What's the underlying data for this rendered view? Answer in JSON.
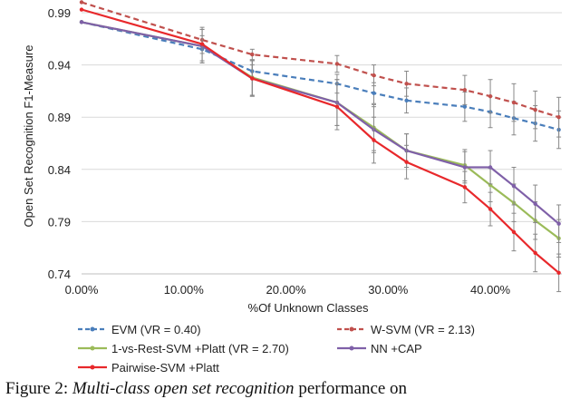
{
  "chart_data": {
    "type": "line",
    "title": "",
    "xlabel": "%Of Unknown Classes",
    "ylabel": "Open Set Recognition F1-Measure",
    "xlim": [
      0,
      47
    ],
    "ylim": [
      0.74,
      0.99
    ],
    "xticks": [
      0,
      10,
      20,
      30,
      40
    ],
    "xtick_labels": [
      "0.00%",
      "10.00%",
      "20.00%",
      "30.00%",
      "40.00%"
    ],
    "yticks": [
      0.74,
      0.79,
      0.84,
      0.89,
      0.94,
      0.99
    ],
    "ytick_labels": [
      "0.74",
      "0.79",
      "0.84",
      "0.89",
      "0.94",
      "0.99"
    ],
    "grid": "horizontal",
    "legend_position": "bottom",
    "series": [
      {
        "name": "EVM  (VR = 0.40)",
        "color": "#4a7ebb",
        "dash": true,
        "x": [
          0,
          11.8,
          16.7,
          25,
          28.6,
          31.8,
          37.5,
          40,
          42.3,
          44.4,
          46.7
        ],
        "y": [
          0.981,
          0.955,
          0.934,
          0.922,
          0.913,
          0.906,
          0.9,
          0.895,
          0.889,
          0.884,
          0.878
        ],
        "err": [
          0,
          0.004,
          0.006,
          0.009,
          0.01,
          0.012,
          0.014,
          0.015,
          0.016,
          0.017,
          0.018
        ]
      },
      {
        "name": "W-SVM (VR = 2.13)",
        "color": "#c0504d",
        "dash": true,
        "x": [
          0,
          11.8,
          16.7,
          25,
          28.6,
          31.8,
          37.5,
          40,
          42.3,
          44.4,
          46.7
        ],
        "y": [
          1.0,
          0.964,
          0.95,
          0.941,
          0.93,
          0.922,
          0.916,
          0.91,
          0.904,
          0.897,
          0.89
        ],
        "err": [
          0,
          0.004,
          0.005,
          0.008,
          0.01,
          0.012,
          0.014,
          0.016,
          0.018,
          0.018,
          0.019
        ]
      },
      {
        "name": "1-vs-Rest-SVM +Platt (VR = 2.70)",
        "color": "#9bbb59",
        "dash": false,
        "x": [
          0,
          11.8,
          16.7,
          25,
          28.6,
          31.8,
          37.5,
          40,
          42.3,
          44.4,
          46.7
        ],
        "y": [
          0.981,
          0.958,
          0.928,
          0.904,
          0.88,
          0.858,
          0.844,
          0.825,
          0.808,
          0.791,
          0.774
        ],
        "err": [
          0,
          0.016,
          0.017,
          0.022,
          0.022,
          0.016,
          0.015,
          0.016,
          0.018,
          0.018,
          0.018
        ]
      },
      {
        "name": "NN +CAP",
        "color": "#7f60a8",
        "dash": false,
        "x": [
          0,
          11.8,
          16.7,
          25,
          28.6,
          31.8,
          37.5,
          40,
          42.3,
          44.4,
          46.7
        ],
        "y": [
          0.981,
          0.958,
          0.927,
          0.904,
          0.878,
          0.858,
          0.842,
          0.842,
          0.824,
          0.807,
          0.788
        ],
        "err": [
          0,
          0.016,
          0.017,
          0.022,
          0.022,
          0.016,
          0.015,
          0.016,
          0.018,
          0.018,
          0.018
        ]
      },
      {
        "name": "Pairwise-SVM +Platt",
        "color": "#e8282b",
        "dash": false,
        "x": [
          0,
          11.8,
          16.7,
          25,
          28.6,
          31.8,
          37.5,
          40,
          42.3,
          44.4,
          46.7
        ],
        "y": [
          0.993,
          0.96,
          0.927,
          0.9,
          0.868,
          0.847,
          0.823,
          0.802,
          0.78,
          0.76,
          0.741
        ],
        "err": [
          0,
          0.016,
          0.017,
          0.022,
          0.022,
          0.016,
          0.015,
          0.016,
          0.018,
          0.018,
          0.018
        ]
      }
    ]
  },
  "caption": {
    "label": "Figure  2:",
    "italic": "Multi-class  open  set  recognition",
    "rest": "performance  on"
  }
}
